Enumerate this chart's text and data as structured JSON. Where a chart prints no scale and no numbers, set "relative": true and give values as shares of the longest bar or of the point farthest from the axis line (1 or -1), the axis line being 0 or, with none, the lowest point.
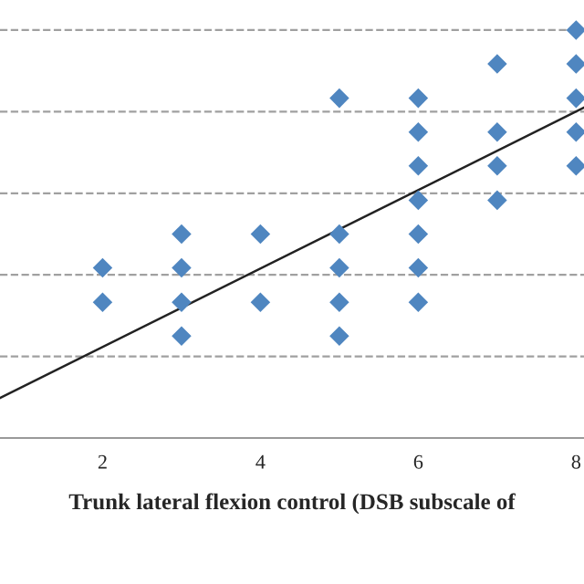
{
  "chart_data": {
    "type": "scatter",
    "xlabel": "Trunk lateral flexion control (DSB subscale of",
    "relative": true,
    "xlim": [
      0.7,
      8.1
    ],
    "xticks": [
      2,
      4,
      6,
      8
    ],
    "grid": "y",
    "series": [
      {
        "marker": "diamond",
        "color": "#4f86c0",
        "x": [
          2,
          2,
          3,
          3,
          3,
          3,
          4,
          4,
          5,
          5,
          5,
          5,
          5,
          6,
          6,
          6,
          6,
          6,
          6,
          6,
          7,
          7,
          7,
          7,
          8,
          8,
          8,
          8,
          8
        ],
        "values": [
          0.417,
          0.333,
          0.5,
          0.417,
          0.333,
          0.25,
          0.5,
          0.333,
          0.833,
          0.5,
          0.417,
          0.333,
          0.25,
          0.833,
          0.75,
          0.667,
          0.583,
          0.5,
          0.417,
          0.333,
          0.917,
          0.75,
          0.667,
          0.583,
          1,
          0.917,
          0.833,
          0.75,
          0.667
        ]
      },
      {
        "type": "line",
        "marker": "none",
        "color": "#222222",
        "x": [
          0.7,
          8.1
        ],
        "values": [
          0.098,
          0.81
        ]
      }
    ]
  }
}
